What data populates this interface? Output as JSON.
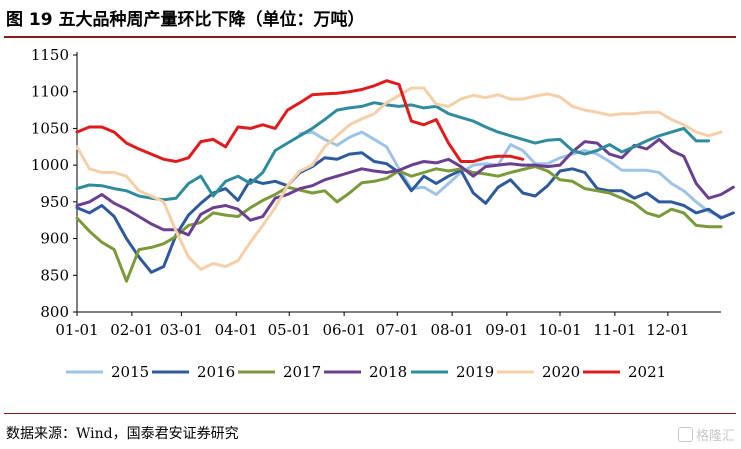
{
  "figure": {
    "title": "图 19 五大品种周产量环比下降（单位：万吨）",
    "source": "数据来源：Wind，国泰君安证券研究",
    "watermark": "格隆汇"
  },
  "chart_data": {
    "type": "line",
    "ylim": [
      800,
      1150
    ],
    "yticks": [
      800,
      850,
      900,
      950,
      1000,
      1050,
      1100,
      1150
    ],
    "xlim": [
      1,
      53
    ],
    "xticks": [
      {
        "label": "01-01",
        "week": 1
      },
      {
        "label": "02-01",
        "week": 5.43
      },
      {
        "label": "03-01",
        "week": 9.43
      },
      {
        "label": "04-01",
        "week": 13.86
      },
      {
        "label": "05-01",
        "week": 18.14
      },
      {
        "label": "06-01",
        "week": 22.57
      },
      {
        "label": "07-01",
        "week": 26.86
      },
      {
        "label": "08-01",
        "week": 31.29
      },
      {
        "label": "09-01",
        "week": 35.71
      },
      {
        "label": "10-01",
        "week": 40
      },
      {
        "label": "11-01",
        "week": 44.43
      },
      {
        "label": "12-01",
        "week": 48.71
      }
    ],
    "grid": false,
    "legend_position": "bottom",
    "series": [
      {
        "name": "2015",
        "color": "#9dc3e6",
        "start": 19,
        "values": [
          1043,
          1045,
          1035,
          1027,
          1038,
          1045,
          1035,
          1025,
          995,
          968,
          970,
          960,
          975,
          990,
          1000,
          1002,
          1000,
          1028,
          1020,
          1002,
          1002,
          1010,
          1015,
          1020,
          1015,
          1005,
          993,
          993,
          993,
          990,
          975,
          965,
          950,
          937,
          930
        ]
      },
      {
        "name": "2016",
        "color": "#2e5a9c",
        "start": 1,
        "values": [
          942,
          935,
          945,
          930,
          900,
          875,
          854,
          862,
          905,
          932,
          948,
          962,
          968,
          952,
          980,
          975,
          978,
          972,
          990,
          998,
          1010,
          1008,
          1015,
          1017,
          1005,
          1002,
          990,
          965,
          985,
          975,
          985,
          993,
          962,
          948,
          970,
          980,
          962,
          958,
          972,
          992,
          995,
          990,
          968,
          965,
          965,
          955,
          962,
          950,
          950,
          945,
          935,
          940,
          928,
          935
        ]
      },
      {
        "name": "2017",
        "color": "#7b9a3a",
        "start": 1,
        "values": [
          928,
          910,
          895,
          885,
          842,
          885,
          888,
          893,
          903,
          918,
          922,
          935,
          932,
          930,
          942,
          952,
          960,
          970,
          966,
          962,
          965,
          950,
          962,
          976,
          978,
          982,
          992,
          985,
          990,
          995,
          992,
          995,
          990,
          988,
          985,
          990,
          994,
          998,
          992,
          980,
          978,
          968,
          965,
          962,
          955,
          948,
          935,
          930,
          940,
          935,
          918,
          916,
          916
        ]
      },
      {
        "name": "2018",
        "color": "#6b3f8f",
        "start": 1,
        "values": [
          945,
          950,
          960,
          948,
          940,
          930,
          920,
          912,
          912,
          905,
          933,
          942,
          945,
          940,
          925,
          930,
          955,
          960,
          968,
          972,
          980,
          985,
          990,
          995,
          992,
          990,
          993,
          1000,
          1005,
          1003,
          1008,
          998,
          985,
          998,
          1000,
          1002,
          1000,
          1000,
          998,
          1000,
          1018,
          1032,
          1030,
          1015,
          1010,
          1027,
          1022,
          1035,
          1020,
          1012,
          975,
          955,
          960,
          970
        ]
      },
      {
        "name": "2019",
        "color": "#2f8c9e",
        "start": 1,
        "values": [
          968,
          973,
          972,
          968,
          965,
          958,
          955,
          953,
          955,
          975,
          985,
          958,
          978,
          985,
          975,
          990,
          1020,
          1030,
          1040,
          1050,
          1062,
          1075,
          1078,
          1080,
          1085,
          1082,
          1080,
          1082,
          1078,
          1080,
          1070,
          1065,
          1060,
          1052,
          1045,
          1040,
          1035,
          1030,
          1034,
          1035,
          1020,
          1015,
          1020,
          1028,
          1018,
          1025,
          1033,
          1040,
          1045,
          1050,
          1033,
          1033
        ]
      },
      {
        "name": "2020",
        "color": "#f5cfa8",
        "start": 1,
        "values": [
          1025,
          995,
          990,
          990,
          985,
          965,
          958,
          950,
          910,
          875,
          858,
          866,
          862,
          870,
          895,
          918,
          942,
          972,
          992,
          1000,
          1025,
          1040,
          1055,
          1063,
          1070,
          1085,
          1095,
          1105,
          1105,
          1083,
          1080,
          1090,
          1095,
          1092,
          1096,
          1090,
          1090,
          1094,
          1097,
          1093,
          1080,
          1075,
          1072,
          1068,
          1070,
          1070,
          1072,
          1072,
          1062,
          1055,
          1045,
          1040,
          1045
        ]
      },
      {
        "name": "2021",
        "color": "#e01b1b",
        "start": 1,
        "values": [
          1045,
          1052,
          1052,
          1045,
          1030,
          1022,
          1015,
          1008,
          1005,
          1010,
          1032,
          1035,
          1025,
          1052,
          1050,
          1055,
          1050,
          1075,
          1085,
          1096,
          1097,
          1098,
          1100,
          1103,
          1108,
          1115,
          1110,
          1060,
          1055,
          1062,
          1030,
          1005,
          1005,
          1010,
          1012,
          1012,
          1008
        ]
      }
    ]
  }
}
